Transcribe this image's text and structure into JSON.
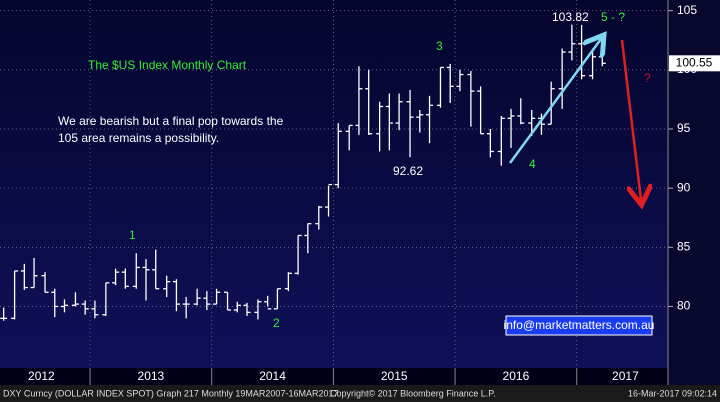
{
  "chart_data": {
    "type": "ohlc",
    "color": "#ffffff",
    "grid": true,
    "x": [
      2012.29,
      2012.38,
      2012.46,
      2012.54,
      2012.63,
      2012.71,
      2012.79,
      2012.88,
      2012.96,
      2013.04,
      2013.13,
      2013.21,
      2013.29,
      2013.38,
      2013.46,
      2013.54,
      2013.63,
      2013.71,
      2013.79,
      2013.88,
      2013.96,
      2014.04,
      2014.13,
      2014.21,
      2014.29,
      2014.38,
      2014.46,
      2014.54,
      2014.63,
      2014.71,
      2014.79,
      2014.88,
      2014.96,
      2015.04,
      2015.13,
      2015.21,
      2015.29,
      2015.38,
      2015.46,
      2015.54,
      2015.63,
      2015.71,
      2015.79,
      2015.88,
      2015.96,
      2016.04,
      2016.13,
      2016.21,
      2016.29,
      2016.38,
      2016.46,
      2016.54,
      2016.63,
      2016.71,
      2016.79,
      2016.88,
      2016.96,
      2017.04,
      2017.13,
      2017.21
    ],
    "open": [
      79.0,
      79.0,
      83.0,
      81.6,
      82.6,
      81.2,
      80.0,
      80.1,
      80.2,
      79.8,
      79.3,
      82.0,
      82.9,
      81.7,
      83.3,
      83.1,
      81.5,
      82.1,
      80.2,
      80.2,
      80.7,
      80.2,
      81.2,
      79.7,
      80.1,
      79.5,
      80.4,
      79.8,
      81.5,
      82.8,
      86.0,
      87.0,
      88.4,
      90.3,
      94.8,
      95.3,
      98.4,
      94.6,
      96.9,
      95.5,
      97.3,
      96.0,
      96.2,
      97.0,
      100.2,
      98.6,
      99.6,
      98.2,
      94.6,
      93.1,
      95.9,
      96.1,
      95.5,
      95.9,
      95.4,
      98.4,
      101.5,
      102.2,
      99.5,
      101.1
    ],
    "high": [
      79.9,
      83.0,
      83.6,
      84.1,
      82.9,
      81.5,
      80.6,
      81.2,
      80.5,
      80.5,
      82.0,
      83.2,
      83.2,
      84.5,
      84.0,
      84.8,
      82.6,
      82.3,
      80.8,
      81.5,
      81.3,
      81.5,
      81.2,
      80.4,
      80.3,
      80.6,
      80.9,
      81.5,
      82.9,
      86.0,
      87.0,
      88.5,
      90.2,
      95.5,
      95.3,
      100.3,
      100.0,
      97.3,
      98.0,
      98.0,
      98.3,
      96.6,
      97.8,
      100.2,
      100.5,
      100.0,
      99.9,
      98.6,
      95.0,
      96.1,
      96.7,
      97.6,
      96.6,
      96.3,
      99.0,
      101.8,
      103.82,
      103.8,
      101.8,
      102.3
    ],
    "low": [
      78.8,
      78.9,
      81.4,
      81.6,
      81.2,
      79.1,
      79.5,
      80.0,
      79.3,
      79.0,
      79.2,
      81.8,
      81.5,
      81.5,
      80.5,
      81.5,
      80.8,
      79.6,
      79.0,
      80.1,
      79.7,
      80.2,
      79.7,
      79.5,
      79.2,
      78.9,
      80.0,
      79.8,
      81.3,
      82.7,
      84.5,
      86.5,
      87.6,
      90.0,
      93.2,
      94.5,
      94.5,
      93.1,
      93.2,
      94.9,
      92.62,
      94.7,
      93.8,
      96.8,
      97.2,
      98.2,
      95.2,
      94.6,
      92.6,
      91.9,
      93.4,
      95.4,
      94.4,
      94.5,
      95.4,
      96.7,
      100.8,
      99.2,
      99.2,
      100.3
    ],
    "close": [
      79.0,
      83.0,
      81.6,
      82.6,
      81.2,
      80.0,
      80.1,
      80.2,
      79.8,
      79.3,
      82.0,
      82.9,
      81.7,
      83.3,
      83.1,
      81.5,
      82.1,
      80.2,
      80.2,
      80.7,
      80.2,
      81.2,
      79.7,
      80.1,
      79.5,
      80.4,
      79.8,
      81.5,
      82.8,
      86.0,
      87.0,
      88.4,
      90.3,
      94.8,
      95.3,
      98.4,
      94.6,
      96.9,
      95.5,
      97.3,
      96.0,
      96.2,
      97.0,
      100.2,
      98.6,
      99.6,
      98.2,
      94.6,
      93.1,
      95.9,
      96.1,
      95.5,
      95.9,
      95.4,
      98.4,
      101.5,
      102.2,
      99.5,
      101.1,
      100.55
    ],
    "last_price": {
      "value": 100.55,
      "label": "100.55"
    },
    "xlim": [
      2012.26,
      2017.75
    ],
    "xticks": [
      {
        "value": 2012.6,
        "label": "2012"
      },
      {
        "value": 2013.5,
        "label": "2013"
      },
      {
        "value": 2014.5,
        "label": "2014"
      },
      {
        "value": 2015.5,
        "label": "2015"
      },
      {
        "value": 2016.5,
        "label": "2016"
      },
      {
        "value": 2017.4,
        "label": "2017"
      }
    ],
    "xseparators": [
      2013,
      2014,
      2015,
      2016,
      2017
    ],
    "ylim": [
      74.8,
      105.9
    ],
    "yticks": [
      80,
      85,
      90,
      95,
      100,
      105
    ],
    "annotations": {
      "title": "The $US Index Monthly Chart",
      "comment_1": "We are bearish but a final pop towards the",
      "comment_2": "105 area remains a possibility.",
      "wave_1": "1",
      "wave_2": "2",
      "wave_3": "3",
      "wave_4": "4",
      "wave_5": "5 - ?",
      "question": "?",
      "high_label": "103.82",
      "low_label": "92.62",
      "email": "info@marketmatters.com.au"
    }
  },
  "footer": {
    "left": "DXY Curncy (DOLLAR INDEX SPOT) Graph 217  Monthly 19MAR2007-16MAR2017",
    "center": "Copyright© 2017 Bloomberg Finance L.P.",
    "right": "16-Mar-2017 09:02:14"
  }
}
